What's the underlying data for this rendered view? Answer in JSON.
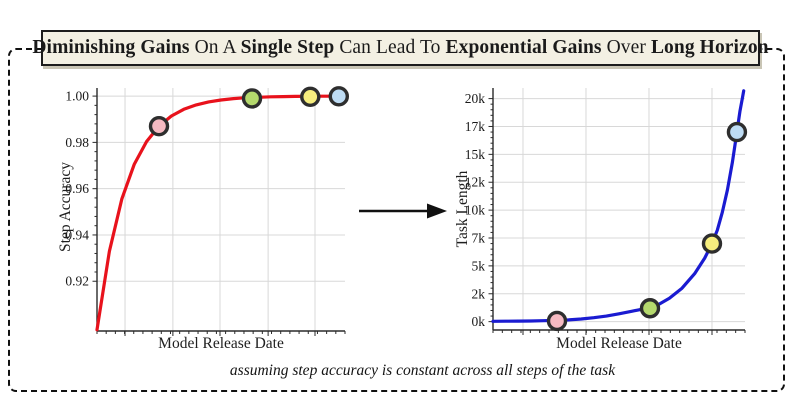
{
  "title": {
    "segments": [
      {
        "t": "Diminishing Gains",
        "b": true
      },
      {
        "t": " On A ",
        "b": false
      },
      {
        "t": "Single Step",
        "b": true
      },
      {
        "t": " Can Lead To ",
        "b": false
      },
      {
        "t": "Exponential Gains",
        "b": true
      },
      {
        "t": " Over ",
        "b": false
      },
      {
        "t": "Long Horizon",
        "b": true
      }
    ]
  },
  "caption": "assuming step accuracy is constant across all steps of the task",
  "colors": {
    "red_curve": "#e8121c",
    "blue_curve": "#1a1bd1",
    "marker_outline": "#2e2e2e",
    "marker_pink": "#f6bac2",
    "marker_green": "#b5d96d",
    "marker_yellow": "#f6ee7e",
    "marker_blue": "#bedcf4",
    "grid": "#d8d8d8",
    "axis": "#2a2a2a",
    "title_box_bg": "#f3f0e3",
    "dashed_border": "#111111"
  },
  "chart_data": [
    {
      "type": "line",
      "title": "",
      "xlabel": "Model Release Date",
      "ylabel": "Step Accuracy",
      "line_color": "#e8121c",
      "ylim": [
        0.8985,
        1.0035
      ],
      "xlim": [
        0,
        1
      ],
      "yticks": [
        0.92,
        0.94,
        0.96,
        0.98,
        1.0
      ],
      "ytick_labels": [
        "0.92",
        "0.94",
        "0.96",
        "0.98",
        "1.00"
      ],
      "xticks": [
        0.113,
        0.306,
        0.496,
        0.69,
        0.879
      ],
      "xtick_labels": [],
      "curve": [
        [
          0.0,
          0.899
        ],
        [
          0.05,
          0.933
        ],
        [
          0.1,
          0.9555
        ],
        [
          0.15,
          0.9705
        ],
        [
          0.2,
          0.9804
        ],
        [
          0.25,
          0.987
        ],
        [
          0.3,
          0.9914
        ],
        [
          0.35,
          0.9943
        ],
        [
          0.4,
          0.9962
        ],
        [
          0.45,
          0.9975
        ],
        [
          0.5,
          0.9983
        ],
        [
          0.55,
          0.9989
        ],
        [
          0.6,
          0.9993
        ],
        [
          0.65,
          0.9995
        ],
        [
          0.7,
          0.9997
        ],
        [
          0.75,
          0.9998
        ],
        [
          0.8,
          0.99985
        ],
        [
          0.85,
          0.9999
        ],
        [
          0.9,
          0.99994
        ],
        [
          0.95,
          0.99996
        ],
        [
          1.0,
          1.0
        ]
      ],
      "points": [
        {
          "x": 0.25,
          "y": 0.987,
          "fill": "#f6bac2"
        },
        {
          "x": 0.625,
          "y": 0.999,
          "fill": "#b5d96d"
        },
        {
          "x": 0.86,
          "y": 0.9997,
          "fill": "#f6ee7e"
        },
        {
          "x": 0.975,
          "y": 0.9999,
          "fill": "#bedcf4"
        }
      ]
    },
    {
      "type": "line",
      "title": "",
      "xlabel": "Model Release Date",
      "ylabel": "Task Length",
      "line_color": "#1a1bd1",
      "ylim": [
        -750,
        20950
      ],
      "xlim": [
        0,
        1
      ],
      "yticks": [
        0,
        2500,
        5000,
        7500,
        10000,
        12500,
        15000,
        17500,
        20000
      ],
      "ytick_labels": [
        "0k",
        "2k",
        "5k",
        "7k",
        "10k",
        "12k",
        "15k",
        "17k",
        "20k"
      ],
      "xticks": [
        0.119,
        0.369,
        0.619,
        0.869
      ],
      "xtick_labels": [],
      "curve": [
        [
          0.0,
          30
        ],
        [
          0.05,
          35
        ],
        [
          0.1,
          45
        ],
        [
          0.15,
          60
        ],
        [
          0.2,
          80
        ],
        [
          0.254,
          110
        ],
        [
          0.3,
          160
        ],
        [
          0.35,
          240
        ],
        [
          0.4,
          350
        ],
        [
          0.45,
          500
        ],
        [
          0.5,
          700
        ],
        [
          0.55,
          930
        ],
        [
          0.6,
          1150
        ],
        [
          0.623,
          1250
        ],
        [
          0.65,
          1450
        ],
        [
          0.7,
          2100
        ],
        [
          0.75,
          3000
        ],
        [
          0.8,
          4300
        ],
        [
          0.84,
          5700
        ],
        [
          0.869,
          7000
        ],
        [
          0.89,
          8200
        ],
        [
          0.91,
          9800
        ],
        [
          0.93,
          11800
        ],
        [
          0.95,
          14300
        ],
        [
          0.968,
          17000
        ],
        [
          0.98,
          18900
        ],
        [
          0.99,
          20100
        ],
        [
          0.995,
          20700
        ]
      ],
      "points": [
        {
          "x": 0.254,
          "y": 60,
          "fill": "#f6bac2"
        },
        {
          "x": 0.623,
          "y": 1200,
          "fill": "#b5d96d"
        },
        {
          "x": 0.869,
          "y": 7000,
          "fill": "#f6ee7e"
        },
        {
          "x": 0.968,
          "y": 17000,
          "fill": "#bedcf4"
        }
      ]
    }
  ]
}
